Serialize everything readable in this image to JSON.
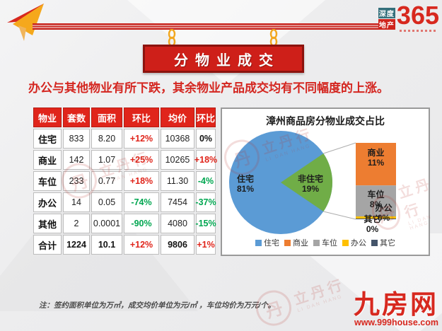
{
  "brand": {
    "box1": "深度",
    "box2": "地产",
    "number": "365"
  },
  "banner": {
    "title": "分物业成交"
  },
  "subtitle": "办公与其他物业有所下跌，其余物业产品成交均有不同幅度的上涨。",
  "table": {
    "headers": [
      "物业",
      "套数",
      "面积",
      "环比",
      "均价",
      "环比"
    ],
    "rows": [
      [
        "住宅",
        "833",
        "8.20",
        "+12%",
        "10368",
        "0%"
      ],
      [
        "商业",
        "142",
        "1.07",
        "+25%",
        "10265",
        "+18%"
      ],
      [
        "车位",
        "233",
        "0.77",
        "+18%",
        "11.30",
        "-4%"
      ],
      [
        "办公",
        "14",
        "0.05",
        "-74%",
        "7454",
        "-37%"
      ],
      [
        "其他",
        "2",
        "0.0001",
        "-90%",
        "4080",
        "-15%"
      ],
      [
        "合计",
        "1224",
        "10.1",
        "+12%",
        "9806",
        "+1%"
      ]
    ]
  },
  "chart_data": {
    "type": "pie",
    "subtype": "bar-of-pie",
    "title": "漳州商品房分物业成交占比",
    "pie": {
      "labels": [
        "住宅",
        "非住宅"
      ],
      "values": [
        81,
        19
      ],
      "pct_labels": [
        "81%",
        "19%"
      ],
      "colors": [
        "#5B9BD5",
        "#70AD47"
      ]
    },
    "bar_breakdown": {
      "labels": [
        "商业",
        "车位",
        "办公",
        "其它"
      ],
      "values": [
        11,
        8,
        0,
        0
      ],
      "pct_labels": [
        "11%",
        "8%",
        "0%",
        "0%"
      ],
      "colors": [
        "#ED7D31",
        "#A5A5A5",
        "#FFC000",
        "#44546A"
      ]
    },
    "legend": [
      {
        "label": "住宅",
        "color": "#5B9BD5"
      },
      {
        "label": "商业",
        "color": "#ED7D31"
      },
      {
        "label": "车位",
        "color": "#A5A5A5"
      },
      {
        "label": "办公",
        "color": "#FFC000"
      },
      {
        "label": "其它",
        "color": "#44546A"
      }
    ],
    "legend_position": "bottom"
  },
  "watermark": {
    "char": "丹",
    "text": "立丹行",
    "sub": "LI DAN HANG"
  },
  "note": "注：签约面积单位为万㎡，成交均价单位为元/㎡ ，车位均价为万元/个。",
  "site": {
    "name": "九房网",
    "url": "www.999house.com"
  },
  "theme": {
    "accent_red": "#D7281E",
    "positive_red": "#E0251B",
    "negative_green": "#00A650",
    "banner_red": "#CE1F19",
    "gold": "#F2A71F"
  }
}
